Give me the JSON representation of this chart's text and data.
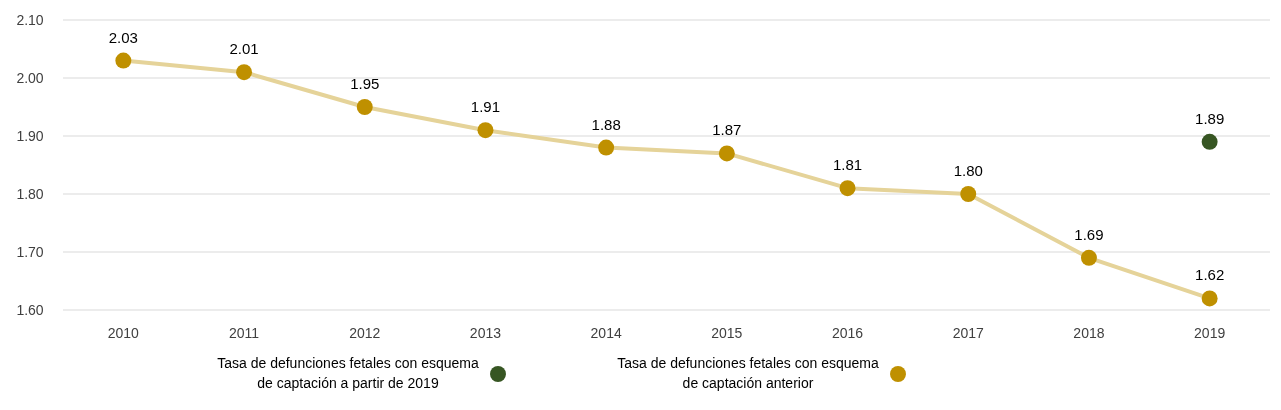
{
  "chart_data": {
    "type": "line",
    "categories": [
      "2010",
      "2011",
      "2012",
      "2013",
      "2014",
      "2015",
      "2016",
      "2017",
      "2018",
      "2019"
    ],
    "series": [
      {
        "name": "Tasa de defunciones fetales con esquema de captación a partir de 2019",
        "type": "scatter",
        "color": "#375623",
        "values": [
          null,
          null,
          null,
          null,
          null,
          null,
          null,
          null,
          null,
          1.89
        ],
        "value_labels": [
          null,
          null,
          null,
          null,
          null,
          null,
          null,
          null,
          null,
          "1.89"
        ]
      },
      {
        "name": "Tasa de defunciones fetales con esquema de captación anterior",
        "color": "#bf9000",
        "values": [
          2.03,
          2.01,
          1.95,
          1.91,
          1.88,
          1.87,
          1.81,
          1.8,
          1.69,
          1.62
        ],
        "value_labels": [
          "2.03",
          "2.01",
          "1.95",
          "1.91",
          "1.88",
          "1.87",
          "1.81",
          "1.80",
          "1.69",
          "1.62"
        ]
      }
    ],
    "ylim": [
      1.6,
      2.1
    ],
    "yticks": [
      {
        "value": 1.6,
        "label": "1.60"
      },
      {
        "value": 1.7,
        "label": "1.70"
      },
      {
        "value": 1.8,
        "label": "1.80"
      },
      {
        "value": 1.9,
        "label": "1.90"
      },
      {
        "value": 2.0,
        "label": "2.00"
      },
      {
        "value": 2.1,
        "label": "2.10"
      }
    ],
    "grid": "y",
    "legend": "bottom",
    "marker": "circle"
  }
}
